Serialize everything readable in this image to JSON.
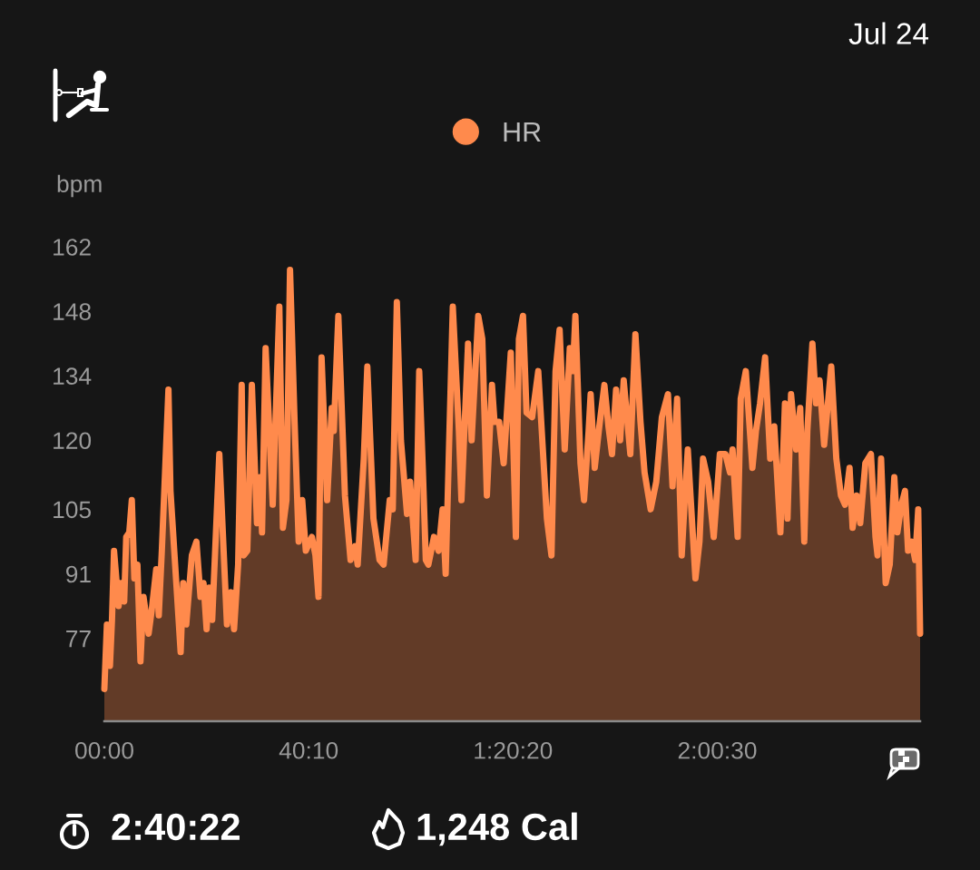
{
  "chart_data": {
    "type": "area",
    "ylabel": "bpm",
    "legend": "top",
    "annotations": [
      "Jul 24",
      "2:40:22",
      "1,248 Cal"
    ],
    "xlim": [
      0,
      160.37
    ],
    "xticks": [
      {
        "value": 0,
        "label": "00:00"
      },
      {
        "value": 40.17,
        "label": "40:10"
      },
      {
        "value": 80.33,
        "label": "1:20:20"
      },
      {
        "value": 120.5,
        "label": "2:00:30"
      }
    ],
    "ylim": [
      59,
      162
    ],
    "yticks": [
      77,
      91,
      105,
      120,
      134,
      148,
      162
    ],
    "series": [
      {
        "name": "HR",
        "color": "#ff8a4c",
        "x": [
          0.0,
          0.5,
          1.1,
          1.5,
          1.9,
          2.8,
          3.3,
          3.9,
          4.3,
          4.9,
          5.4,
          5.9,
          6.5,
          7.1,
          7.7,
          8.7,
          9.3,
          10.2,
          10.7,
          11.3,
          12.6,
          13.0,
          15.0,
          15.5,
          16.1,
          17.2,
          18.1,
          18.9,
          19.5,
          20.1,
          20.6,
          21.2,
          22.6,
          24.1,
          24.9,
          25.5,
          26.3,
          27.0,
          27.4,
          28.1,
          29.0,
          30.0,
          30.6,
          31.0,
          31.7,
          33.1,
          34.4,
          35.1,
          35.8,
          36.5,
          37.4,
          38.2,
          38.9,
          39.6,
          40.8,
          41.5,
          42.1,
          42.7,
          43.8,
          44.7,
          45.1,
          46.0,
          47.3,
          48.4,
          49.3,
          49.8,
          51.0,
          51.7,
          52.9,
          54.1,
          54.9,
          56.1,
          56.7,
          57.5,
          58.3,
          59.5,
          60.1,
          61.2,
          61.9,
          62.6,
          63.2,
          63.7,
          64.8,
          65.7,
          66.5,
          67.1,
          68.5,
          69.7,
          70.2,
          71.5,
          72.2,
          73.5,
          74.3,
          75.2,
          76.2,
          76.7,
          77.6,
          78.5,
          79.9,
          80.9,
          81.5,
          82.3,
          83.0,
          84.1,
          85.3,
          87.0,
          87.9,
          88.7,
          89.5,
          90.5,
          91.5,
          92.1,
          92.6,
          93.6,
          94.3,
          95.2,
          95.6,
          96.4,
          97.3,
          98.3,
          99.1,
          99.8,
          100.6,
          101.4,
          102.1,
          103.4,
          104.4,
          105.4,
          106.2,
          107.4,
          108.5,
          109.6,
          110.8,
          111.7,
          112.6,
          113.5,
          114.2,
          114.7,
          116.2,
          117.0,
          117.7,
          118.7,
          119.8,
          121.0,
          122.1,
          123.0,
          123.5,
          124.5,
          125.1,
          126.1,
          127.4,
          128.1,
          128.9,
          129.9,
          130.9,
          131.7,
          132.9,
          133.8,
          134.3,
          135.0,
          136.0,
          136.8,
          137.6,
          138.2,
          139.2,
          139.9,
          140.6,
          141.5,
          142.9,
          143.9,
          144.8,
          145.6,
          146.5,
          147.1,
          147.9,
          148.6,
          149.6,
          150.7,
          151.6,
          152.0,
          152.7,
          153.6,
          154.4,
          155.3,
          155.9,
          156.7,
          157.4,
          158.0,
          158.7,
          159.4,
          160.0,
          160.37
        ],
        "values": [
          66,
          80,
          71,
          81,
          96,
          84,
          89,
          85,
          99,
          100,
          107,
          90,
          93,
          72,
          86,
          78,
          83,
          92,
          82,
          96,
          131,
          109,
          74,
          89,
          80,
          95,
          98,
          86,
          89,
          79,
          88,
          81,
          117,
          80,
          87,
          79,
          93,
          132,
          95,
          96,
          132,
          102,
          112,
          100,
          140,
          106,
          149,
          101,
          107,
          157,
          124,
          98,
          107,
          96,
          99,
          95,
          86,
          138,
          107,
          127,
          122,
          147,
          108,
          94,
          97,
          93,
          116,
          136,
          103,
          94,
          93,
          107,
          105,
          150,
          120,
          104,
          111,
          94,
          135,
          114,
          94,
          93,
          99,
          96,
          105,
          91,
          149,
          122,
          107,
          141,
          120,
          147,
          142,
          108,
          132,
          124,
          124,
          115,
          139,
          99,
          142,
          147,
          126,
          125,
          135,
          103,
          95,
          135,
          144,
          118,
          140,
          135,
          147,
          115,
          107,
          122,
          130,
          114,
          123,
          132,
          123,
          117,
          131,
          120,
          133,
          117,
          143,
          124,
          113,
          105,
          111,
          125,
          130,
          110,
          129,
          95,
          109,
          118,
          90,
          98,
          116,
          111,
          99,
          117,
          117,
          113,
          118,
          99,
          129,
          135,
          114,
          122,
          128,
          138,
          116,
          123,
          100,
          128,
          103,
          130,
          118,
          127,
          98,
          122,
          141,
          128,
          133,
          119,
          136,
          116,
          108,
          106,
          114,
          101,
          108,
          102,
          115,
          117,
          99,
          95,
          116,
          89,
          93,
          112,
          100,
          106,
          109,
          96,
          98,
          94,
          105,
          78
        ]
      }
    ]
  }
}
